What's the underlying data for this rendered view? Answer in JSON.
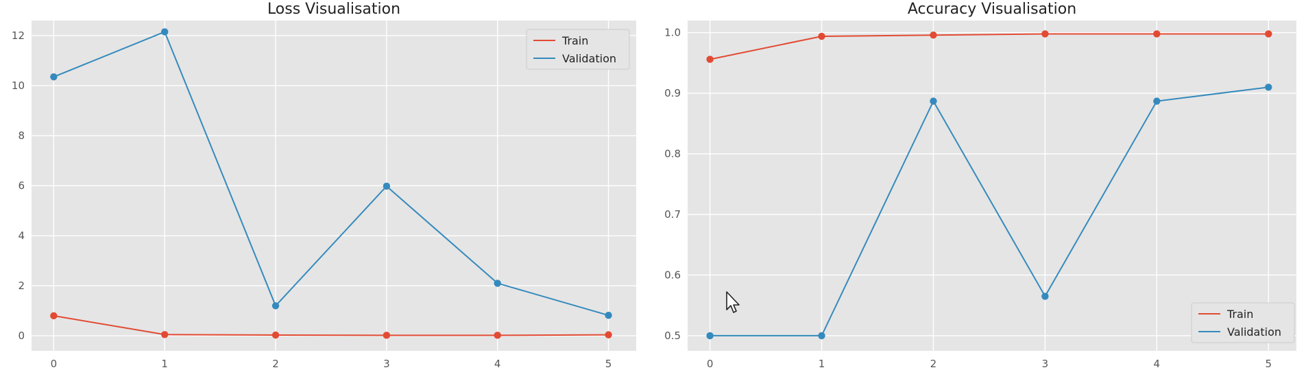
{
  "chart_data": [
    {
      "type": "line",
      "title": "Loss Visualisation",
      "xlabel": "",
      "ylabel": "",
      "x": [
        0,
        1,
        2,
        3,
        4,
        5
      ],
      "xlim": [
        -0.2,
        5.25
      ],
      "ylim": [
        -0.6,
        12.6
      ],
      "xticks": [
        0,
        1,
        2,
        3,
        4,
        5
      ],
      "yticks": [
        0,
        2,
        4,
        6,
        8,
        10,
        12
      ],
      "grid": true,
      "legend_position": "top-right",
      "series": [
        {
          "name": "Train",
          "color": "#e24a33",
          "values": [
            0.8,
            0.05,
            0.03,
            0.02,
            0.02,
            0.04
          ]
        },
        {
          "name": "Validation",
          "color": "#348abd",
          "values": [
            10.35,
            12.15,
            1.2,
            5.98,
            2.1,
            0.82
          ]
        }
      ]
    },
    {
      "type": "line",
      "title": "Accuracy Visualisation",
      "xlabel": "",
      "ylabel": "",
      "x": [
        0,
        1,
        2,
        3,
        4,
        5
      ],
      "xlim": [
        -0.2,
        5.25
      ],
      "ylim": [
        0.475,
        1.02
      ],
      "xticks": [
        0,
        1,
        2,
        3,
        4,
        5
      ],
      "yticks": [
        0.5,
        0.6,
        0.7,
        0.8,
        0.9,
        1.0
      ],
      "ytick_labels": [
        "0.5",
        "0.6",
        "0.7",
        "0.8",
        "0.9",
        "1.0"
      ],
      "grid": true,
      "legend_position": "bottom-right",
      "series": [
        {
          "name": "Train",
          "color": "#e24a33",
          "values": [
            0.956,
            0.994,
            0.996,
            0.998,
            0.998,
            0.998
          ]
        },
        {
          "name": "Validation",
          "color": "#348abd",
          "values": [
            0.5,
            0.5,
            0.887,
            0.565,
            0.887,
            0.91
          ]
        }
      ]
    }
  ],
  "style": {
    "panel_background": "#e5e5e5",
    "grid_color": "#ffffff"
  }
}
